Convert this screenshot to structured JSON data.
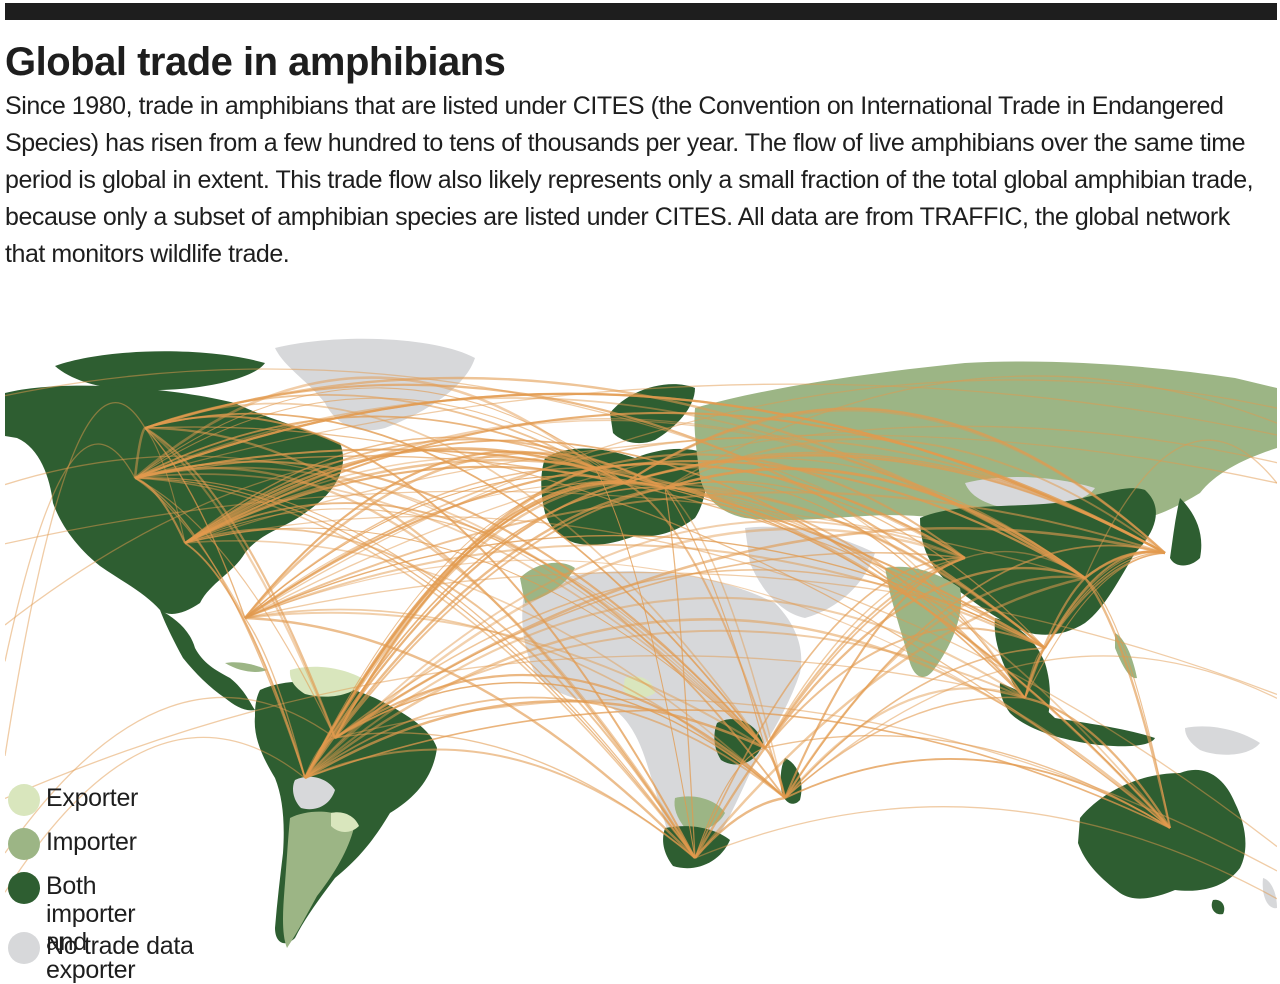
{
  "title": "Global trade in amphibians",
  "intro": "Since 1980, trade in amphibians that are listed under CITES (the Convention on International Trade in Endangered Species) has risen from a few hundred to tens of thousands per year.  The flow of live amphibians over the same time period is global in extent.  This trade flow also likely represents only a small fraction of the total global amphibian trade, because only a subset of amphibian species are listed under CITES. All data are from TRAFFIC, the global network that monitors wildlife trade.",
  "colors": {
    "exporter": "#d9e6bd",
    "importer": "#9cb585",
    "both": "#2e5e31",
    "no_data": "#d7d8da",
    "flow": "#e29a4e",
    "bar": "#1e1e1e"
  },
  "legend": [
    {
      "key": "exporter",
      "label": "Exporter"
    },
    {
      "key": "importer",
      "label": "Importer"
    },
    {
      "key": "both",
      "label": "Both importer\nand exporter"
    },
    {
      "key": "no_data",
      "label": "No trade data"
    }
  ]
}
